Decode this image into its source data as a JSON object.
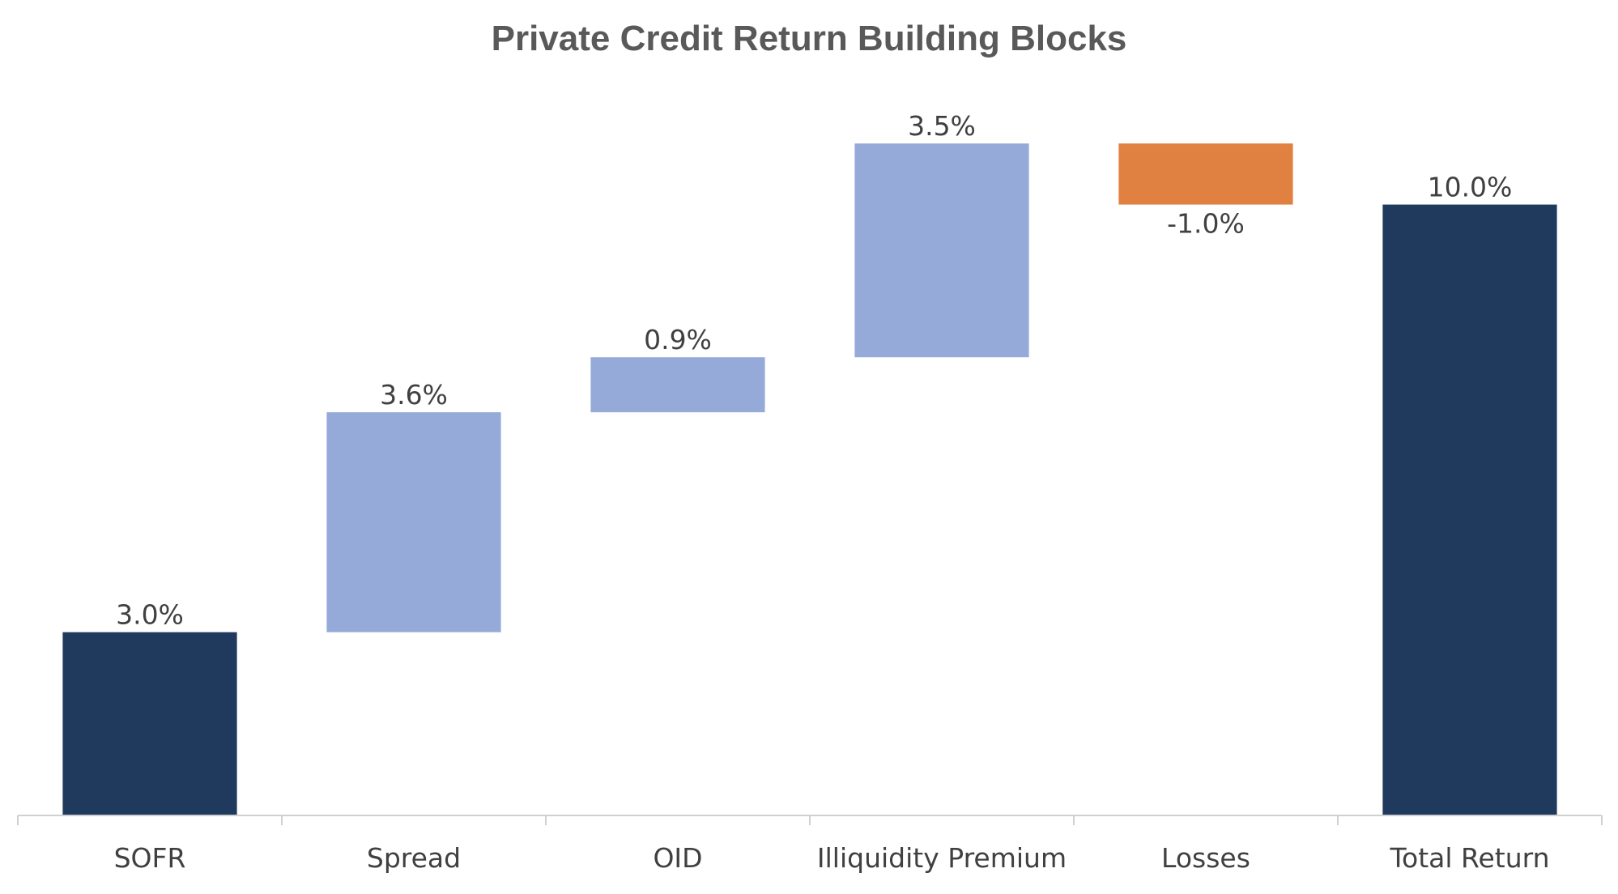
{
  "chart_data": {
    "type": "bar",
    "subtype": "waterfall",
    "title": "Private Credit Return Building Blocks",
    "xlabel": "",
    "ylabel": "",
    "ylim": [
      0,
      11.4
    ],
    "grid": false,
    "legend": "none",
    "categories": [
      "SOFR",
      "Spread",
      "OID",
      "Illiquidity Premium",
      "Losses",
      "Total Return"
    ],
    "values": [
      3.0,
      3.6,
      0.9,
      3.5,
      -1.0,
      10.0
    ],
    "data_labels": [
      "3.0%",
      "3.6%",
      "0.9%",
      "3.5%",
      "-1.0%",
      "10.0%"
    ],
    "bar_kinds": [
      "total",
      "increase",
      "increase",
      "increase",
      "decrease",
      "total"
    ],
    "colors": {
      "total": "#203A5E",
      "increase": "#95AAD8",
      "decrease": "#E08142",
      "axis": "#D0D0D0",
      "text": "#404040",
      "title": "#595959"
    }
  }
}
